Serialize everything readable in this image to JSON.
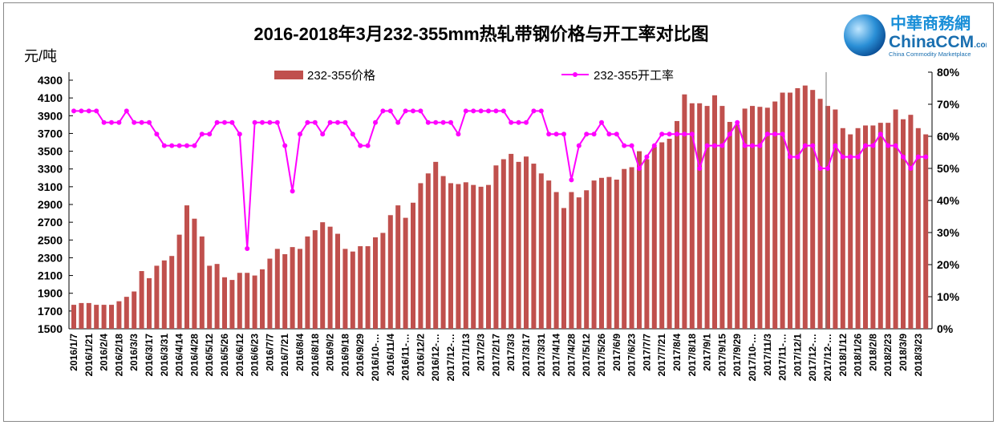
{
  "chart_data": {
    "type": "bar+line",
    "title": "2016-2018年3月232-355mm热轧带钢价格与开工率对比图",
    "ylabel_left": "元/吨",
    "ylim_left": [
      1500,
      4300
    ],
    "yticks_left": [
      "4300",
      "4100",
      "3900",
      "3700",
      "3500",
      "3300",
      "3100",
      "2900",
      "2700",
      "2500",
      "2300",
      "2100",
      "1900",
      "1700",
      "1500"
    ],
    "ylim_right": [
      0,
      80
    ],
    "yticks_right": [
      "80%",
      "70%",
      "60%",
      "50%",
      "40%",
      "30%",
      "20%",
      "10%",
      "0%"
    ],
    "legend_placement": "top",
    "grid": false,
    "x_tick_labels": [
      "2016/1/7",
      "2016/1/21",
      "2016/2/4",
      "2016/2/18",
      "2016/3/3",
      "2016/3/17",
      "2016/3/31",
      "2016/4/14",
      "2016/4/28",
      "2016/5/12",
      "2016/5/26",
      "2016/6/12",
      "2016/6/23",
      "2016/7/7",
      "2016/7/21",
      "2016/8/4",
      "2016/8/18",
      "2016/9/2",
      "2016/9/18",
      "2016/9/29",
      "2016/10-…",
      "2016/11/4",
      "2016/11-…",
      "2016/12/2",
      "2016/12-…",
      "2017/12-…",
      "2017/1/13",
      "2017/2/3",
      "2017/2/17",
      "2017/3/3",
      "2017/3/17",
      "2017/3/31",
      "2017/4/14",
      "2017/4/28",
      "2017/5/12",
      "2017/5/26",
      "2017/6/9",
      "2017/6/23",
      "2017/7/7",
      "2017/7/21",
      "2017/8/4",
      "2017/8/18",
      "2017/9/1",
      "2017/9/15",
      "2017/9/29",
      "2017/10-…",
      "2017/11/3",
      "2017/11-…",
      "2017/12/1",
      "2017/12-…",
      "2017/12-…",
      "2018/1/12",
      "2018/1/26",
      "2018/2/8",
      "2018/2/23",
      "2018/3/9",
      "2018/3/23"
    ],
    "series": [
      {
        "name": "232-355价格",
        "type": "bar",
        "axis": "left",
        "color": "#C0504D",
        "values": [
          1770,
          1790,
          1790,
          1770,
          1770,
          1770,
          1810,
          1860,
          1920,
          2150,
          2070,
          2210,
          2270,
          2320,
          2560,
          2890,
          2740,
          2540,
          2210,
          2230,
          2080,
          2050,
          2130,
          2130,
          2100,
          2170,
          2290,
          2400,
          2340,
          2420,
          2400,
          2540,
          2610,
          2700,
          2650,
          2570,
          2400,
          2370,
          2430,
          2430,
          2530,
          2580,
          2780,
          2890,
          2750,
          2920,
          3140,
          3250,
          3380,
          3220,
          3140,
          3130,
          3150,
          3120,
          3100,
          3120,
          3340,
          3410,
          3470,
          3380,
          3440,
          3360,
          3250,
          3170,
          3040,
          2860,
          3040,
          2980,
          3060,
          3170,
          3200,
          3210,
          3180,
          3300,
          3320,
          3500,
          3410,
          3550,
          3600,
          3640,
          3840,
          4140,
          4040,
          4040,
          4010,
          4130,
          4010,
          3830,
          3800,
          3980,
          4010,
          4000,
          3990,
          4060,
          4160,
          4160,
          4210,
          4240,
          4190,
          4090,
          4010,
          3970,
          3760,
          3690,
          3760,
          3790,
          3790,
          3820,
          3820,
          3970,
          3860,
          3910,
          3760,
          3690
        ]
      },
      {
        "name": "232-355开工率",
        "type": "line",
        "axis": "right",
        "unit": "%",
        "color": "#FF00FF",
        "values": [
          67.9,
          67.9,
          67.9,
          67.9,
          64.3,
          64.3,
          64.3,
          67.9,
          64.3,
          64.3,
          64.3,
          60.7,
          57.1,
          57.1,
          57.1,
          57.1,
          57.1,
          60.7,
          60.7,
          64.3,
          64.3,
          64.3,
          60.7,
          25.0,
          64.3,
          64.3,
          64.3,
          64.3,
          57.1,
          42.9,
          60.7,
          64.3,
          64.3,
          60.7,
          64.3,
          64.3,
          64.3,
          60.7,
          57.1,
          57.1,
          64.3,
          67.9,
          67.9,
          64.3,
          67.9,
          67.9,
          67.9,
          64.3,
          64.3,
          64.3,
          64.3,
          60.7,
          67.9,
          67.9,
          67.9,
          67.9,
          67.9,
          67.9,
          64.3,
          64.3,
          64.3,
          67.9,
          67.9,
          60.7,
          60.7,
          60.7,
          46.4,
          57.1,
          60.7,
          60.7,
          64.3,
          60.7,
          60.7,
          57.1,
          57.1,
          50.0,
          53.6,
          57.1,
          60.7,
          60.7,
          60.7,
          60.7,
          60.7,
          50.0,
          57.1,
          57.1,
          57.1,
          60.7,
          64.3,
          57.1,
          57.1,
          57.1,
          60.7,
          60.7,
          60.7,
          53.6,
          53.6,
          57.1,
          57.1,
          50.0,
          50.0,
          57.1,
          53.6,
          53.6,
          53.6,
          57.1,
          57.1,
          60.7,
          57.1,
          57.1,
          53.6,
          50.0,
          53.6,
          53.6
        ]
      }
    ]
  },
  "logo": {
    "cn": "中華商務網",
    "en": "ChinaCCM",
    "suffix": ".com",
    "tagline": "China Commodity Marketplace"
  }
}
